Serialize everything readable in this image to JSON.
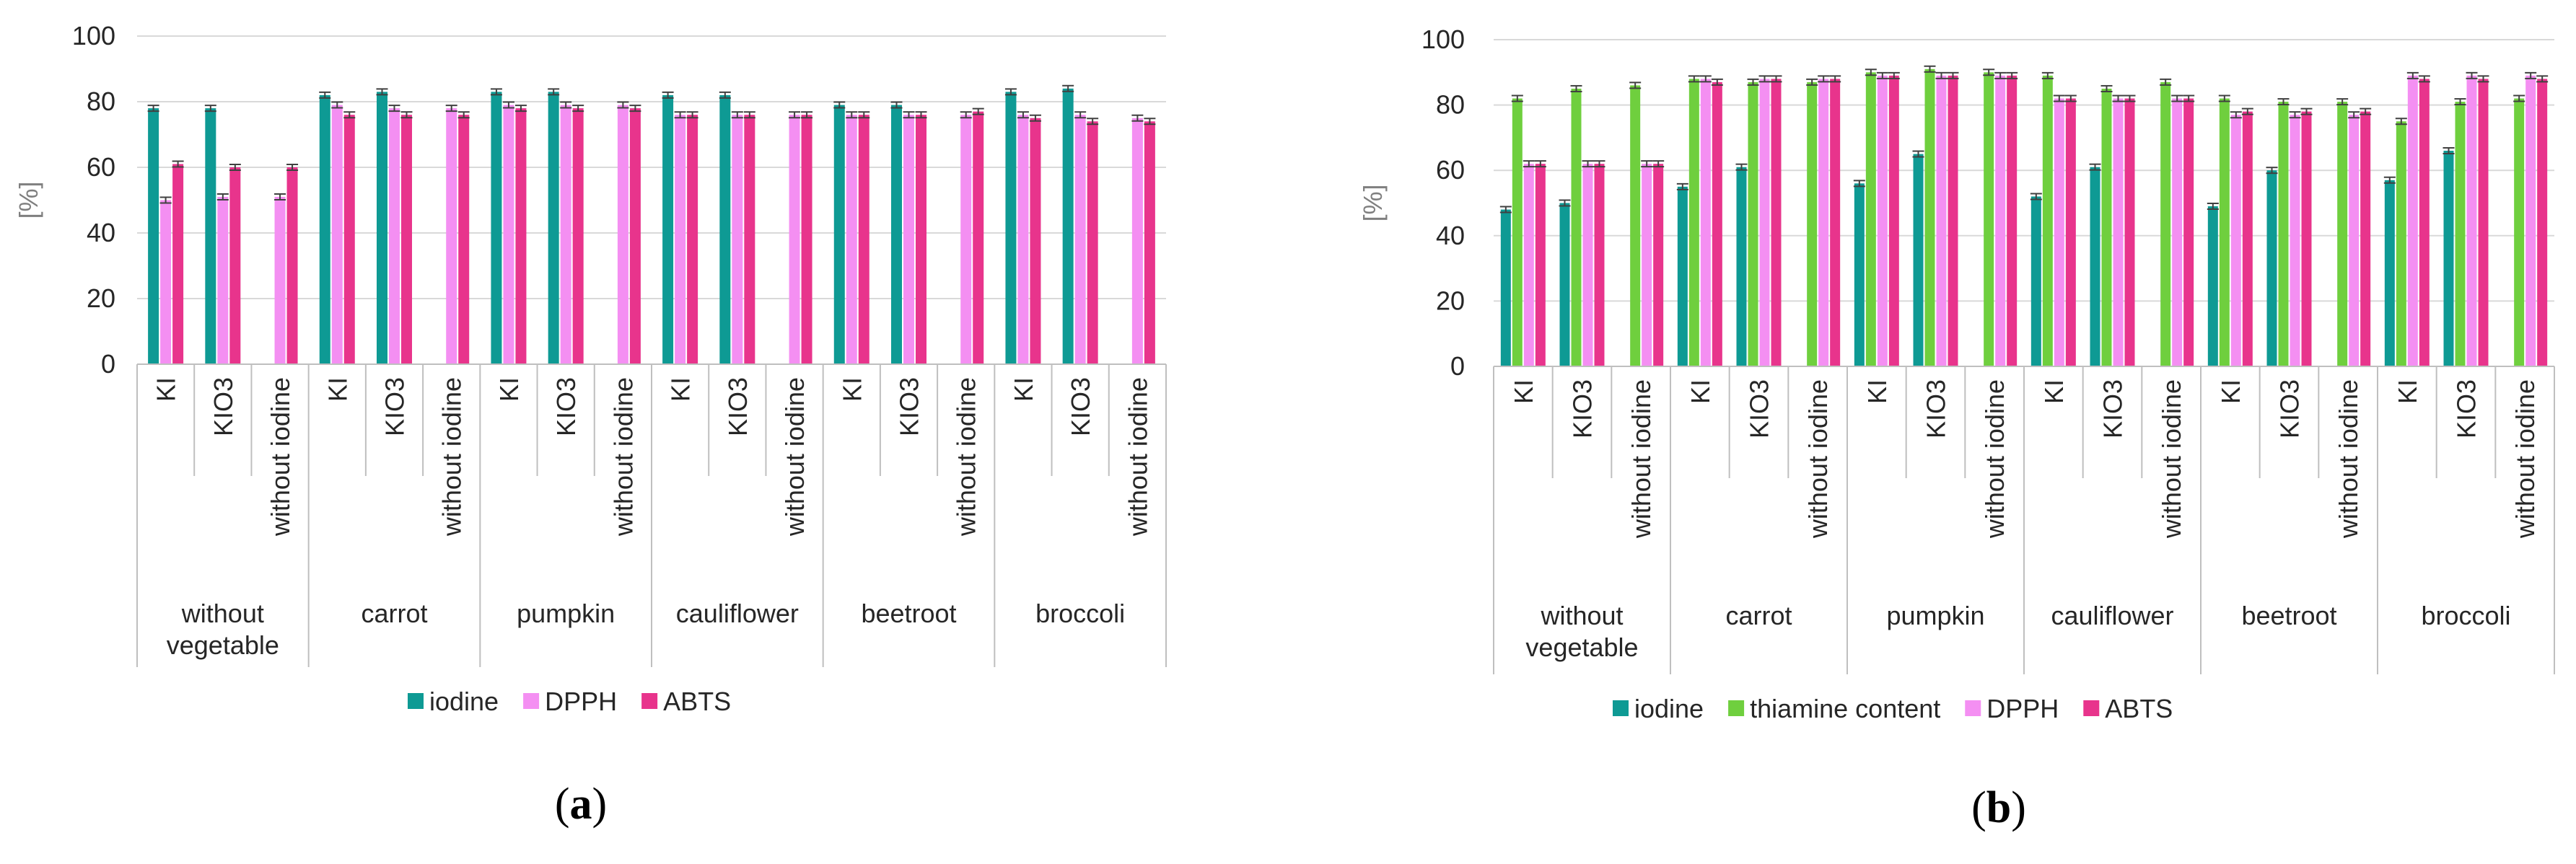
{
  "chart_data": [
    {
      "type": "bar",
      "panel_label": {
        "open": "(",
        "letter": "a",
        "close": ")"
      },
      "ylabel": "[%]",
      "ylim": [
        0,
        100
      ],
      "yticks": [
        0,
        20,
        40,
        60,
        80,
        100
      ],
      "grid": true,
      "legend_position": "bottom",
      "groups": [
        {
          "name": [
            "without",
            "vegetable"
          ]
        },
        {
          "name": [
            "carrot"
          ]
        },
        {
          "name": [
            "pumpkin"
          ]
        },
        {
          "name": [
            "cauliflower"
          ]
        },
        {
          "name": [
            "beetroot"
          ]
        },
        {
          "name": [
            "broccoli"
          ]
        }
      ],
      "subcategories": [
        "KI",
        "KIO3",
        "without iodine"
      ],
      "series": [
        {
          "name": "iodine",
          "color": "#0e9a94",
          "values": [
            78,
            78,
            null,
            82,
            83,
            null,
            83,
            83,
            null,
            82,
            82,
            null,
            79,
            79,
            null,
            83,
            84,
            null
          ]
        },
        {
          "name": "DPPH",
          "color": "#f48ff2",
          "values": [
            50,
            51,
            51,
            79,
            78,
            78,
            79,
            79,
            79,
            76,
            76,
            76,
            76,
            76,
            76,
            76,
            76,
            75
          ]
        },
        {
          "name": "ABTS",
          "color": "#e8348c",
          "values": [
            61,
            60,
            60,
            76,
            76,
            76,
            78,
            78,
            78,
            76,
            76,
            76,
            76,
            76,
            77,
            75,
            74,
            74
          ]
        }
      ]
    },
    {
      "type": "bar",
      "panel_label": {
        "open": "(",
        "letter": "b",
        "close": ")"
      },
      "ylabel": "[%]",
      "ylim": [
        0,
        100
      ],
      "yticks": [
        0,
        20,
        40,
        60,
        80,
        100
      ],
      "grid": true,
      "legend_position": "bottom",
      "groups": [
        {
          "name": [
            "without",
            "vegetable"
          ]
        },
        {
          "name": [
            "carrot"
          ]
        },
        {
          "name": [
            "pumpkin"
          ]
        },
        {
          "name": [
            "cauliflower"
          ]
        },
        {
          "name": [
            "beetroot"
          ]
        },
        {
          "name": [
            "broccoli"
          ]
        }
      ],
      "subcategories": [
        "KI",
        "KIO3",
        "without iodine"
      ],
      "series": [
        {
          "name": "iodine",
          "color": "#0e9a94",
          "values": [
            48,
            50,
            null,
            55,
            61,
            null,
            56,
            65,
            null,
            52,
            61,
            null,
            49,
            60,
            null,
            57,
            66,
            0
          ]
        },
        {
          "name": "thiamine content",
          "color": "#6fcf3e",
          "values": [
            82,
            85,
            86,
            88,
            87,
            87,
            90,
            91,
            90,
            89,
            85,
            87,
            82,
            81,
            81,
            75,
            81,
            82
          ]
        },
        {
          "name": "DPPH",
          "color": "#f48ff2",
          "values": [
            62,
            62,
            62,
            88,
            88,
            88,
            89,
            89,
            89,
            82,
            82,
            82,
            77,
            77,
            77,
            89,
            89,
            89
          ]
        },
        {
          "name": "ABTS",
          "color": "#e8348c",
          "values": [
            62,
            62,
            62,
            87,
            88,
            88,
            89,
            89,
            89,
            82,
            82,
            82,
            78,
            78,
            78,
            88,
            88,
            88
          ]
        }
      ]
    }
  ]
}
